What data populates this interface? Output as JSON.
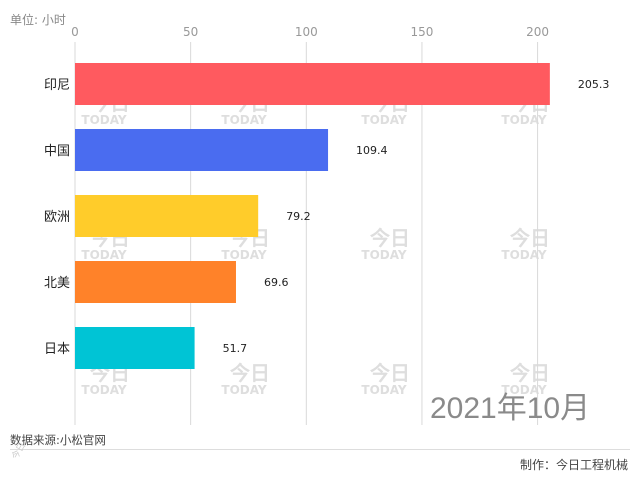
{
  "header": {
    "unit_label": "单位: 小时"
  },
  "chart_data": {
    "type": "bar",
    "orientation": "horizontal",
    "categories": [
      "印尼",
      "中国",
      "欧洲",
      "北美",
      "日本"
    ],
    "values": [
      205.3,
      109.4,
      79.2,
      69.6,
      51.7
    ],
    "value_labels": [
      "205.3",
      "109.4",
      "79.2",
      "69.6",
      "51.7"
    ],
    "colors": [
      "#ff5a5f",
      "#4a6cf0",
      "#ffcc2a",
      "#ff8229",
      "#00c4d5"
    ],
    "xlim": [
      0,
      215
    ],
    "x_ticks": [
      0,
      50,
      100,
      150,
      200
    ],
    "x_tick_labels": [
      "0",
      "50",
      "100",
      "150",
      "200"
    ],
    "grid": true,
    "axis_position": "top"
  },
  "overlay": {
    "period_label": "2021年10月"
  },
  "footer": {
    "source": "数据来源:小松官网",
    "maker": "制作：今日工程机械",
    "side_mark": "今日"
  },
  "watermark": {
    "brand_cn": "今日",
    "brand_en": "TODAY",
    "color": "#dedede"
  }
}
